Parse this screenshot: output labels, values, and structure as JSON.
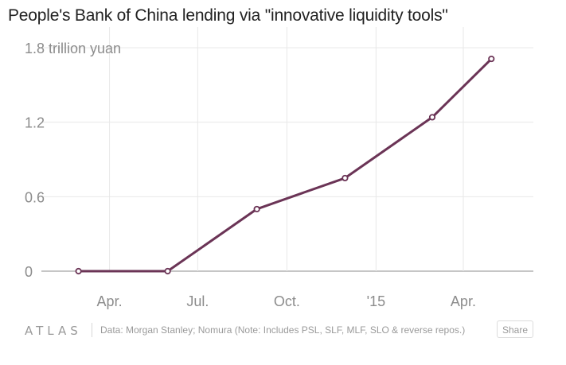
{
  "title": "People's Bank of China lending via \"innovative liquidity tools\"",
  "footer": {
    "logo": "ATLAS",
    "source": "Data: Morgan Stanley; Nomura (Note: Includes PSL, SLF, MLF, SLO & reverse repos.)",
    "share_label": "Share"
  },
  "colors": {
    "line": "#6b3456",
    "grid": "#e8e8e8",
    "baseline": "#8c8c8c",
    "tick_text": "#8c8c8c"
  },
  "chart_data": {
    "type": "line",
    "title": "People's Bank of China lending via \"innovative liquidity tools\"",
    "ylabel": "",
    "xlabel": "",
    "ylim": [
      0,
      1.8
    ],
    "ytick_labels": [
      "0",
      "0.6",
      "1.2",
      "1.8 trillion yuan"
    ],
    "yticks": [
      0,
      0.6,
      1.2,
      1.8
    ],
    "xtick_labels": [
      "Apr.",
      "Jul.",
      "Oct.",
      "'15",
      "Apr."
    ],
    "xticks": [
      "2014-04-01",
      "2014-07-01",
      "2014-10-01",
      "2015-01-01",
      "2015-04-01"
    ],
    "xlim": [
      "2014-01-01",
      "2015-05-31"
    ],
    "grid": true,
    "series": [
      {
        "x": [
          "2014-02-28",
          "2014-05-31",
          "2014-08-31",
          "2014-11-30",
          "2015-02-28",
          "2015-04-30"
        ],
        "values": [
          0,
          0,
          0.5,
          0.75,
          1.24,
          1.71
        ],
        "markers": true
      }
    ]
  }
}
